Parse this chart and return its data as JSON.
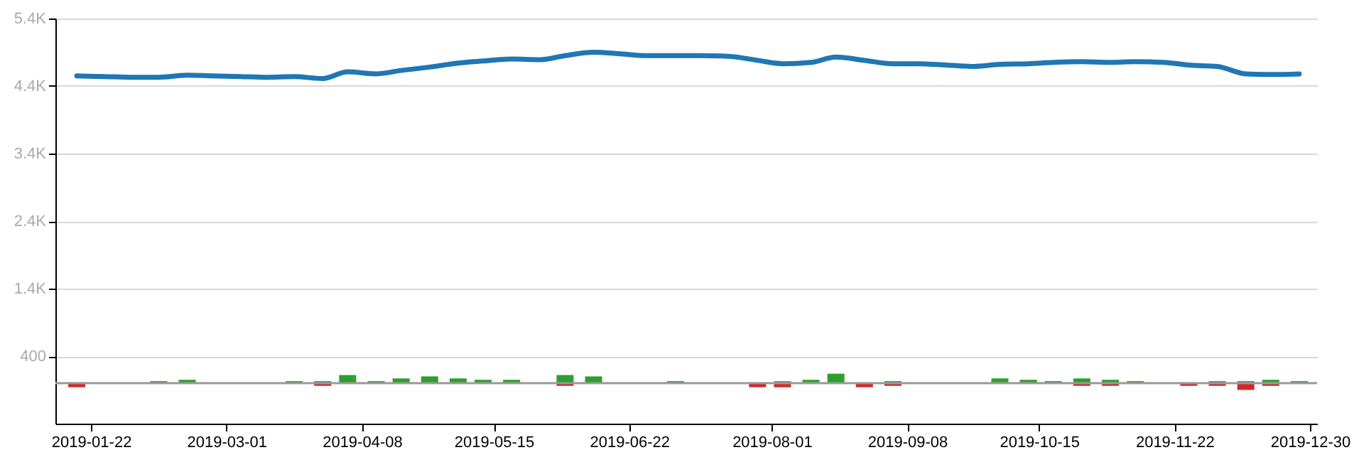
{
  "chart_data": {
    "type": "bar",
    "stacked": true,
    "x": [
      "2019-01-18",
      "2019-01-26",
      "2019-02-02",
      "2019-02-10",
      "2019-02-18",
      "2019-02-25",
      "2019-03-05",
      "2019-03-12",
      "2019-03-20",
      "2019-03-28",
      "2019-04-04",
      "2019-04-12",
      "2019-04-19",
      "2019-04-27",
      "2019-05-05",
      "2019-05-12",
      "2019-05-20",
      "2019-05-28",
      "2019-06-04",
      "2019-06-12",
      "2019-06-19",
      "2019-06-27",
      "2019-07-05",
      "2019-07-12",
      "2019-07-20",
      "2019-07-28",
      "2019-08-04",
      "2019-08-12",
      "2019-08-19",
      "2019-08-27",
      "2019-09-04",
      "2019-09-11",
      "2019-09-19",
      "2019-09-26",
      "2019-10-04",
      "2019-10-12",
      "2019-10-19",
      "2019-10-27",
      "2019-11-04",
      "2019-11-11",
      "2019-11-19",
      "2019-11-26",
      "2019-12-04",
      "2019-12-12",
      "2019-12-19",
      "2019-12-27"
    ],
    "series": [
      {
        "type": "line",
        "color": "#1f77b4",
        "values": [
          4550,
          4540,
          4530,
          4530,
          4560,
          4550,
          4540,
          4530,
          4540,
          4510,
          4610,
          4580,
          4630,
          4680,
          4740,
          4770,
          4800,
          4790,
          4850,
          4900,
          4880,
          4850,
          4850,
          4850,
          4840,
          4780,
          4730,
          4750,
          4830,
          4780,
          4730,
          4730,
          4710,
          4690,
          4720,
          4730,
          4750,
          4760,
          4750,
          4760,
          4750,
          4710,
          4690,
          4580,
          4570,
          4580
        ]
      },
      {
        "color": "#2ca02c",
        "values": [
          null,
          null,
          null,
          30,
          50,
          null,
          null,
          null,
          30,
          30,
          120,
          30,
          70,
          100,
          70,
          50,
          50,
          null,
          120,
          100,
          null,
          null,
          30,
          null,
          null,
          null,
          30,
          50,
          140,
          null,
          30,
          null,
          null,
          null,
          70,
          50,
          30,
          70,
          50,
          30,
          null,
          null,
          30,
          30,
          50,
          30
        ]
      },
      {
        "color": "#d62728",
        "values": [
          -60,
          null,
          null,
          null,
          null,
          null,
          null,
          null,
          null,
          -40,
          null,
          null,
          null,
          null,
          null,
          null,
          null,
          null,
          -40,
          null,
          null,
          null,
          null,
          null,
          null,
          -60,
          -60,
          null,
          null,
          -60,
          -40,
          null,
          null,
          null,
          null,
          null,
          null,
          -40,
          -40,
          null,
          null,
          -40,
          -40,
          -100,
          -40,
          null
        ]
      }
    ],
    "xlim": [
      "2019-01-14",
      "2019-12-30"
    ],
    "xticks": [
      "2019-01-22",
      "2019-03-01",
      "2019-04-08",
      "2019-05-15",
      "2019-06-22",
      "2019-08-01",
      "2019-09-08",
      "2019-10-15",
      "2019-11-22",
      "2019-12-30"
    ],
    "ylim": [
      -600,
      5400
    ],
    "yticks": [
      {
        "value": 400,
        "label": "400"
      },
      {
        "value": 1400,
        "label": "1.4K"
      },
      {
        "value": 2400,
        "label": "2.4K"
      },
      {
        "value": 3400,
        "label": "3.4K"
      },
      {
        "value": 4400,
        "label": "4.4K"
      },
      {
        "value": 5400,
        "label": "5.4K"
      }
    ],
    "grid": "y",
    "ref_lines": [
      {
        "axis": "y",
        "value": 0,
        "color": "#999999"
      }
    ]
  }
}
